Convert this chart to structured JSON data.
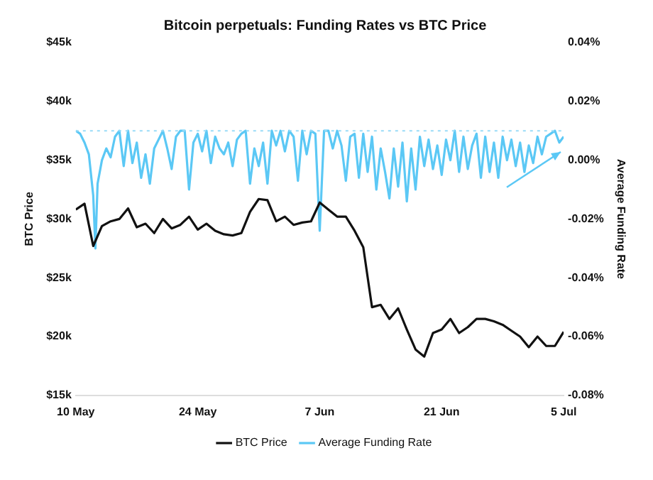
{
  "chart_data": {
    "type": "line",
    "title": "Bitcoin perpetuals: Funding Rates vs BTC Price",
    "ylabel": "BTC Price",
    "y2label": "Average Funding Rate",
    "xlim": [
      "--05-10",
      "--07-05"
    ],
    "xticks": [
      {
        "value": "--05-10",
        "label": "10 May"
      },
      {
        "value": "--05-24",
        "label": "24 May"
      },
      {
        "value": "--06-07",
        "label": "7 Jun"
      },
      {
        "value": "--06-21",
        "label": "21 Jun"
      },
      {
        "value": "--07-05",
        "label": "5 Jul"
      }
    ],
    "ylim": [
      15000,
      45000
    ],
    "yticks": [
      {
        "value": 15000,
        "label": "$15k"
      },
      {
        "value": 20000,
        "label": "$20k"
      },
      {
        "value": 25000,
        "label": "$25k"
      },
      {
        "value": 30000,
        "label": "$30k"
      },
      {
        "value": 35000,
        "label": "$35k"
      },
      {
        "value": 40000,
        "label": "$40k"
      },
      {
        "value": 45000,
        "label": "$45k"
      }
    ],
    "y2lim": [
      -0.08,
      0.04
    ],
    "y2ticks": [
      {
        "value": -0.08,
        "label": "-0.08%"
      },
      {
        "value": -0.06,
        "label": "-0.06%"
      },
      {
        "value": -0.04,
        "label": "-0.04%"
      },
      {
        "value": -0.02,
        "label": "-0.02%"
      },
      {
        "value": 0,
        "label": "0.00%"
      },
      {
        "value": 0.02,
        "label": "0.02%"
      },
      {
        "value": 0.04,
        "label": "0.04%"
      }
    ],
    "grid": false,
    "legend": "bottom",
    "marker": "none",
    "line_style": "solid",
    "ref_lines": [
      {
        "axis": "y2",
        "value": 0.01,
        "color": "#9adcf7",
        "line_style": "dotted"
      }
    ],
    "series": [
      {
        "name": "BTC Price",
        "color": "#111111",
        "x": [
          "--05-10",
          "--05-11",
          "--05-12",
          "--05-13",
          "--05-14",
          "--05-15",
          "--05-16",
          "--05-17",
          "--05-18",
          "--05-19",
          "--05-20",
          "--05-21",
          "--05-22",
          "--05-23",
          "--05-24",
          "--05-25",
          "--05-26",
          "--05-27",
          "--05-28",
          "--05-29",
          "--05-30",
          "--05-31",
          "--06-01",
          "--06-02",
          "--06-03",
          "--06-04",
          "--06-05",
          "--06-06",
          "--06-07",
          "--06-08",
          "--06-09",
          "--06-10",
          "--06-11",
          "--06-12",
          "--06-13",
          "--06-14",
          "--06-15",
          "--06-16",
          "--06-17",
          "--06-18",
          "--06-19",
          "--06-20",
          "--06-21",
          "--06-22",
          "--06-23",
          "--06-24",
          "--06-25",
          "--06-26",
          "--06-27",
          "--06-28",
          "--06-29",
          "--06-30",
          "--07-01",
          "--07-02",
          "--07-03",
          "--07-04",
          "--07-05"
        ],
        "values": [
          30800,
          31300,
          27700,
          29400,
          29800,
          30000,
          30900,
          29300,
          29600,
          28800,
          30000,
          29200,
          29500,
          30200,
          29100,
          29600,
          29000,
          28700,
          28600,
          28800,
          30600,
          31700,
          31600,
          29800,
          30200,
          29500,
          29700,
          29800,
          31400,
          30800,
          30200,
          30200,
          29000,
          27600,
          22500,
          22700,
          21500,
          22400,
          20600,
          18900,
          18300,
          20300,
          20600,
          21500,
          20300,
          20800,
          21500,
          21500,
          21300,
          21000,
          20500,
          20000,
          19100,
          20000,
          19200,
          19200,
          20400
        ]
      },
      {
        "name": "Average Funding Rate",
        "color": "#5bc8f5",
        "axis": "y2",
        "x": [
          "--05-10T00:00",
          "--05-10T12:00",
          "--05-11T00:00",
          "--05-11T12:00",
          "--05-12T00:00",
          "--05-12T06:00",
          "--05-12T12:00",
          "--05-13T00:00",
          "--05-13T12:00",
          "--05-14T00:00",
          "--05-14T12:00",
          "--05-15T00:00",
          "--05-15T12:00",
          "--05-16T00:00",
          "--05-16T12:00",
          "--05-17T00:00",
          "--05-17T12:00",
          "--05-18T00:00",
          "--05-18T12:00",
          "--05-19T00:00",
          "--05-19T12:00",
          "--05-20T00:00",
          "--05-20T12:00",
          "--05-21T00:00",
          "--05-21T12:00",
          "--05-22T00:00",
          "--05-22T12:00",
          "--05-23T00:00",
          "--05-23T12:00",
          "--05-24T00:00",
          "--05-24T12:00",
          "--05-25T00:00",
          "--05-25T12:00",
          "--05-26T00:00",
          "--05-26T12:00",
          "--05-27T00:00",
          "--05-27T12:00",
          "--05-28T00:00",
          "--05-28T12:00",
          "--05-29T00:00",
          "--05-29T12:00",
          "--05-30T00:00",
          "--05-30T12:00",
          "--05-31T00:00",
          "--05-31T12:00",
          "--06-01T00:00",
          "--06-01T12:00",
          "--06-02T00:00",
          "--06-02T12:00",
          "--06-03T00:00",
          "--06-03T12:00",
          "--06-04T00:00",
          "--06-04T12:00",
          "--06-05T00:00",
          "--06-05T12:00",
          "--06-06T00:00",
          "--06-06T12:00",
          "--06-07T00:00",
          "--06-07T12:00",
          "--06-08T00:00",
          "--06-08T12:00",
          "--06-09T00:00",
          "--06-09T12:00",
          "--06-10T00:00",
          "--06-10T12:00",
          "--06-11T00:00",
          "--06-11T12:00",
          "--06-12T00:00",
          "--06-12T12:00",
          "--06-13T00:00",
          "--06-13T12:00",
          "--06-14T00:00",
          "--06-14T12:00",
          "--06-15T00:00",
          "--06-15T12:00",
          "--06-16T00:00",
          "--06-16T12:00",
          "--06-17T00:00",
          "--06-17T12:00",
          "--06-18T00:00",
          "--06-18T12:00",
          "--06-19T00:00",
          "--06-19T12:00",
          "--06-20T00:00",
          "--06-20T12:00",
          "--06-21T00:00",
          "--06-21T12:00",
          "--06-22T00:00",
          "--06-22T12:00",
          "--06-23T00:00",
          "--06-23T12:00",
          "--06-24T00:00",
          "--06-24T12:00",
          "--06-25T00:00",
          "--06-25T12:00",
          "--06-26T00:00",
          "--06-26T12:00",
          "--06-27T00:00",
          "--06-27T12:00",
          "--06-28T00:00",
          "--06-28T12:00",
          "--06-29T00:00",
          "--06-29T12:00",
          "--06-30T00:00",
          "--06-30T12:00",
          "--07-01T00:00",
          "--07-01T12:00",
          "--07-02T00:00",
          "--07-02T12:00",
          "--07-03T00:00",
          "--07-03T12:00",
          "--07-04T00:00",
          "--07-04T12:00",
          "--07-05T00:00"
        ],
        "values": [
          0.01,
          0.009,
          0.006,
          0.002,
          -0.012,
          -0.03,
          -0.008,
          0,
          0.004,
          0.001,
          0.008,
          0.01,
          -0.002,
          0.01,
          -0.001,
          0.006,
          -0.006,
          0.002,
          -0.008,
          0.004,
          0.007,
          0.01,
          0.004,
          -0.003,
          0.008,
          0.01,
          0.01,
          -0.01,
          0.006,
          0.009,
          0.003,
          0.01,
          -0.001,
          0.008,
          0.004,
          0.002,
          0.006,
          -0.002,
          0.007,
          0.009,
          0.01,
          -0.008,
          0.004,
          -0.002,
          0.006,
          -0.008,
          0.01,
          0.005,
          0.01,
          0.003,
          0.01,
          0.008,
          -0.007,
          0.01,
          0.002,
          0.01,
          0.009,
          -0.024,
          0.01,
          0.01,
          0.004,
          0.01,
          0.005,
          -0.007,
          0.008,
          0.009,
          -0.006,
          0.009,
          -0.004,
          0.008,
          -0.01,
          0.004,
          -0.004,
          -0.013,
          0.004,
          -0.009,
          0.006,
          -0.014,
          0.004,
          -0.01,
          0.008,
          -0.002,
          0.007,
          -0.003,
          0.005,
          -0.005,
          0.007,
          0,
          0.01,
          -0.004,
          0.008,
          -0.003,
          0.005,
          0.009,
          -0.006,
          0.008,
          -0.004,
          0.006,
          -0.006,
          0.008,
          0,
          0.007,
          -0.002,
          0.006,
          -0.004,
          0.005,
          -0.001,
          0.008,
          0.002,
          0.008,
          0.009,
          0.01,
          0.006,
          0.008
        ]
      }
    ]
  }
}
